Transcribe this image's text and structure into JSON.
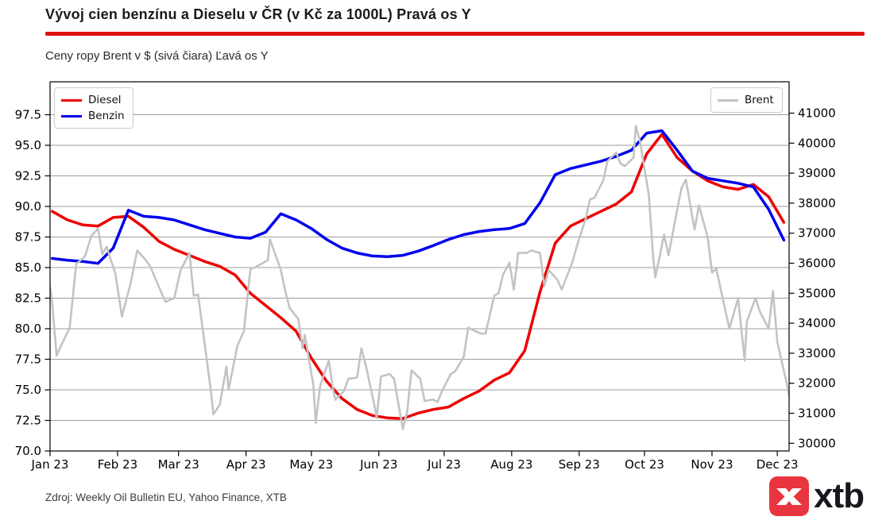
{
  "header": {
    "title": "Vývoj cien benzínu a Dieselu v ČR (v Kč za 1000L) Pravá os Y",
    "subtitle": "Ceny ropy Brent v $ (sivá čiara) Ľavá os Y"
  },
  "footer": {
    "source": "Zdroj: Weekly Oil Bulletin EU, Yahoo Finance, XTB",
    "logo_text": "xtb"
  },
  "legend": {
    "diesel": "Diesel",
    "benzin": "Benzin",
    "brent": "Brent"
  },
  "colors": {
    "diesel": "#ee0000",
    "benzin": "#0000ee",
    "brent": "#c3c3c3",
    "title_rule": "#e01010",
    "logo_red": "#e8353f",
    "grid": "#7d7d7d",
    "axis": "#000000"
  },
  "chart_data": {
    "type": "line",
    "title": "Vývoj cien benzínu a Dieselu v ČR (v Kč za 1000L) Pravá os Y",
    "subtitle": "Ceny ropy Brent v $ (sivá čiara) Ľavá os Y",
    "grid": true,
    "legend_position": {
      "diesel_benzin": "upper left",
      "brent": "upper right"
    },
    "x_axis": {
      "tick_labels": [
        "Jan 23",
        "Feb 23",
        "Mar 23",
        "Apr 23",
        "May 23",
        "Jun 23",
        "Jul 23",
        "Aug 23",
        "Sep 23",
        "Oct 23",
        "Nov 23",
        "Dec 23"
      ],
      "tick_days": [
        0,
        31,
        59,
        90,
        120,
        151,
        181,
        212,
        243,
        273,
        304,
        334
      ]
    },
    "left_axis": {
      "description": "Brent crude oil price in USD",
      "ticks": [
        70.0,
        72.5,
        75.0,
        77.5,
        80.0,
        82.5,
        85.0,
        87.5,
        90.0,
        92.5,
        95.0,
        97.5
      ],
      "range": [
        70.0,
        100.2
      ]
    },
    "right_axis": {
      "description": "Fuel price in CZK per 1000 L",
      "ticks": [
        30000,
        31000,
        32000,
        33000,
        34000,
        35000,
        36000,
        37000,
        38000,
        39000,
        40000,
        41000
      ],
      "range": [
        29740,
        42040
      ]
    },
    "series": [
      {
        "name": "Diesel",
        "axis": "right",
        "color_key": "diesel",
        "width": 3.5,
        "cadence": "weekly",
        "day_start": 1,
        "day_step": 7,
        "values": [
          37727,
          37442,
          37279,
          37238,
          37524,
          37564,
          37198,
          36729,
          36464,
          36261,
          36057,
          35894,
          35609,
          34998,
          34591,
          34183,
          33735,
          32839,
          32065,
          31495,
          31128,
          30925,
          30843,
          30823,
          31006,
          31128,
          31209,
          31495,
          31739,
          32106,
          32350,
          33083,
          35039,
          36668,
          37238,
          37483,
          37727,
          37971,
          38379,
          39642,
          40294,
          39520,
          39072,
          38746,
          38542,
          38461,
          38624,
          38216,
          37360
        ]
      },
      {
        "name": "Benzin",
        "axis": "right",
        "color_key": "benzin",
        "width": 3.5,
        "cadence": "weekly",
        "day_start": 1,
        "day_step": 7,
        "values": [
          36159,
          36098,
          36057,
          35996,
          36505,
          37768,
          37564,
          37524,
          37442,
          37279,
          37116,
          36994,
          36872,
          36831,
          37035,
          37646,
          37442,
          37157,
          36790,
          36505,
          36342,
          36240,
          36220,
          36261,
          36403,
          36587,
          36790,
          36953,
          37055,
          37116,
          37157,
          37320,
          38012,
          38949,
          39153,
          39275,
          39397,
          39560,
          39764,
          40334,
          40416,
          39764,
          39072,
          38827,
          38746,
          38664,
          38542,
          37800,
          36770
        ]
      },
      {
        "name": "Brent",
        "axis": "left",
        "color_key": "brent",
        "width": 2.6,
        "cadence": "daily",
        "days": [
          0,
          1,
          3,
          5,
          9,
          12,
          16,
          19,
          22,
          24,
          26,
          30,
          33,
          37,
          40,
          44,
          46,
          51,
          53,
          57,
          60,
          64,
          66,
          68,
          72,
          74,
          75,
          78,
          81,
          82,
          86,
          89,
          92,
          94,
          100,
          101,
          103,
          106,
          108,
          110,
          114,
          116,
          117,
          121,
          122,
          124,
          128,
          130,
          131,
          135,
          137,
          141,
          143,
          145,
          149,
          150,
          152,
          156,
          158,
          162,
          164,
          166,
          170,
          172,
          176,
          178,
          180,
          184,
          186,
          190,
          192,
          194,
          198,
          200,
          204,
          206,
          208,
          211,
          213,
          215,
          219,
          221,
          225,
          227,
          229,
          233,
          235,
          240,
          242,
          246,
          248,
          250,
          254,
          256,
          260,
          262,
          264,
          268,
          269,
          271,
          275,
          277,
          278,
          282,
          284,
          288,
          290,
          292,
          296,
          298,
          302,
          304,
          306,
          310,
          312,
          316,
          319,
          320,
          324,
          326,
          330,
          332,
          334,
          338,
          340
        ],
        "values": [
          83.4,
          82.1,
          77.8,
          78.6,
          80.1,
          85.3,
          85.9,
          87.6,
          88.2,
          86.1,
          86.7,
          84.5,
          81.0,
          83.7,
          86.4,
          85.6,
          85.1,
          83.0,
          82.2,
          82.5,
          84.8,
          86.2,
          82.7,
          82.8,
          77.4,
          74.7,
          73.0,
          73.8,
          76.9,
          75.0,
          78.6,
          79.8,
          84.9,
          85.0,
          85.6,
          87.3,
          86.3,
          84.8,
          83.1,
          81.7,
          80.8,
          78.4,
          79.5,
          75.3,
          72.3,
          75.3,
          77.4,
          75.0,
          74.2,
          74.9,
          75.9,
          76.0,
          78.4,
          77.0,
          73.7,
          72.7,
          76.1,
          76.3,
          75.9,
          71.8,
          73.2,
          76.6,
          75.9,
          74.1,
          74.2,
          74.0,
          74.9,
          76.3,
          76.5,
          77.7,
          80.1,
          79.9,
          79.6,
          79.6,
          82.7,
          82.9,
          84.4,
          85.4,
          83.2,
          86.2,
          86.2,
          86.4,
          86.2,
          83.5,
          84.8,
          84.0,
          83.2,
          85.5,
          86.8,
          89.0,
          90.6,
          90.7,
          92.1,
          93.7,
          94.4,
          93.5,
          93.3,
          94.0,
          96.6,
          95.3,
          90.9,
          85.8,
          84.2,
          87.7,
          86.0,
          89.7,
          91.5,
          92.2,
          88.1,
          90.1,
          87.5,
          84.6,
          84.9,
          81.6,
          80.0,
          82.5,
          77.4,
          80.6,
          82.5,
          81.4,
          80.0,
          83.1,
          78.9,
          75.8,
          74.1
        ]
      }
    ]
  }
}
